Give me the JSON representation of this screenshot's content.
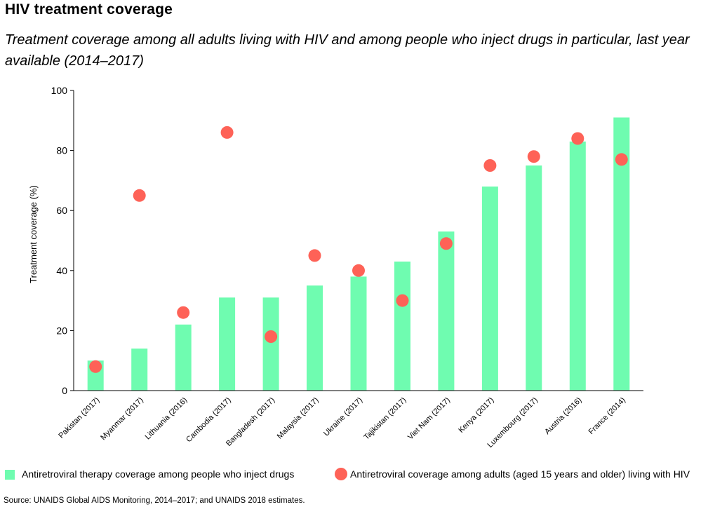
{
  "title": "HIV treatment coverage",
  "subtitle": "Treatment coverage among all adults living with HIV and among people who inject drugs in particular, last year available (2014–2017)",
  "source": "Source: UNAIDS Global AIDS Monitoring, 2014–2017; and UNAIDS 2018 estimates.",
  "colors": {
    "bar": "#6ffcb0",
    "dot": "#fe6257",
    "axis": "#000000"
  },
  "chart_data": {
    "type": "bar",
    "title": "HIV treatment coverage",
    "ylabel": "Treatment coverage (%)",
    "xlabel": "",
    "ylim": [
      0,
      100
    ],
    "yticks": [
      0,
      20,
      40,
      60,
      80,
      100
    ],
    "grid": false,
    "legend_position": "bottom",
    "categories": [
      "Pakistan (2017)",
      "Myanmar (2017)",
      "Lithuania (2016)",
      "Cambodia (2017)",
      "Bangladesh (2017)",
      "Malaysia (2017)",
      "Ukraine (2017)",
      "Tajikistan (2017)",
      "Viet Nam (2017)",
      "Kenya (2017)",
      "Luxembourg (2017)",
      "Austria (2016)",
      "France (2014)"
    ],
    "series": [
      {
        "name": "Antiretroviral therapy coverage among people who inject drugs",
        "type": "bar",
        "values": [
          10,
          14,
          22,
          31,
          31,
          35,
          38,
          43,
          53,
          68,
          75,
          83,
          91
        ]
      },
      {
        "name": "Antiretroviral coverage among adults (aged 15 years and older) living with HIV",
        "type": "scatter",
        "values": [
          8,
          65,
          26,
          86,
          18,
          45,
          40,
          30,
          49,
          75,
          78,
          84,
          77
        ]
      }
    ]
  }
}
